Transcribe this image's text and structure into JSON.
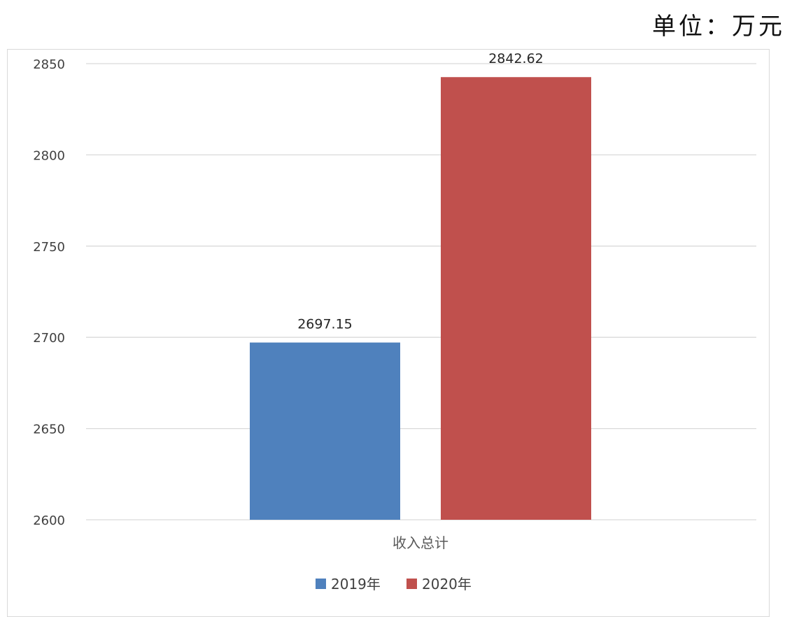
{
  "unit_label": "单位：万元",
  "chart_data": {
    "type": "bar",
    "categories": [
      "收入总计"
    ],
    "series": [
      {
        "name": "2019年",
        "values": [
          2697.15
        ],
        "color": "#4f81bd",
        "label": "2697.15"
      },
      {
        "name": "2020年",
        "values": [
          2842.62
        ],
        "color": "#c0504d",
        "label": "2842.62"
      }
    ],
    "ylim": [
      2600,
      2850
    ],
    "yticks": [
      2600,
      2650,
      2700,
      2750,
      2800,
      2850
    ],
    "grid": true,
    "legend_position": "bottom",
    "title": "",
    "xlabel": "",
    "ylabel": ""
  }
}
